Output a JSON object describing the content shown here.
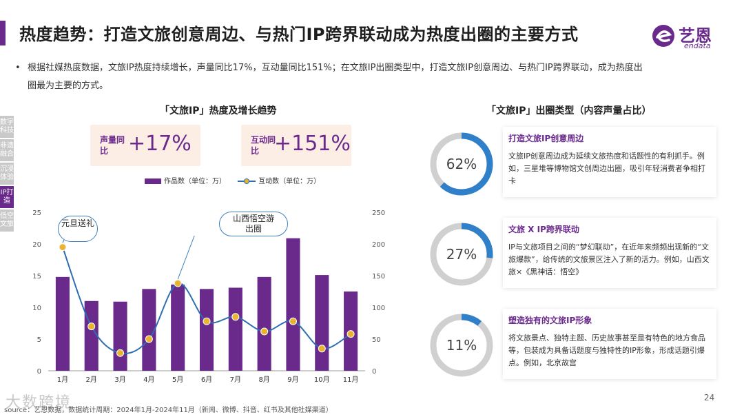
{
  "title": "热度趋势：打造文旅创意周边、与热门IP跨界联动成为热度出圈的主要方式",
  "logo": {
    "cn": "艺恩",
    "en": "endata"
  },
  "bullet": {
    "dot": "•",
    "text": "根据社媒热度数据，文旅IP热度持续增长，声量同比17%，互动量同比151%；在文旅IP出圈类型中，打造文旅IP创意周边、与热门IP跨界联动，成为热度出圈最为主要的方式。"
  },
  "side_tabs": [
    {
      "label": "数字科技",
      "active": false
    },
    {
      "label": "非遗融合",
      "active": false
    },
    {
      "label": "沉浸体验",
      "active": false
    },
    {
      "label": "IP打造",
      "active": true
    },
    {
      "label": "低空文旅",
      "active": false
    }
  ],
  "left_chart_title": "「文旅IP」热度及增长趋势",
  "stats": [
    {
      "label": "声量同比",
      "value": "+17%"
    },
    {
      "label": "互动同比",
      "value": "+151%"
    }
  ],
  "legend": {
    "bar": "作品数（单位：万）",
    "line": "互动数（单位：万）"
  },
  "callouts": {
    "jan": "元旦送礼",
    "may": "山西悟空游出圈"
  },
  "chart_data": {
    "type": "bar",
    "categories": [
      "1月",
      "2月",
      "3月",
      "4月",
      "5月",
      "6月",
      "7月",
      "8月",
      "9月",
      "10月",
      "11月"
    ],
    "series": [
      {
        "name": "作品数（单位：万）",
        "type": "bar",
        "axis": "left",
        "values": [
          14.8,
          11.0,
          10.9,
          12.9,
          13.6,
          12.9,
          13.1,
          14.8,
          20.9,
          15.1,
          12.5
        ]
      },
      {
        "name": "互动数（单位：万）",
        "type": "line",
        "axis": "right",
        "values": [
          195,
          70,
          28,
          50,
          138,
          78,
          85,
          62,
          78,
          35,
          58
        ]
      }
    ],
    "ylim_left": [
      0,
      25
    ],
    "yticks_left": [
      0,
      5,
      10,
      15,
      20,
      25
    ],
    "ylim_right": [
      0,
      250
    ],
    "yticks_right": [
      0,
      50,
      100,
      150,
      200,
      250
    ],
    "colors": {
      "bar": "#6a2a8c",
      "line": "#2f6db3",
      "marker": "#e8b431"
    }
  },
  "right_title": "「文旅IP」出圈类型（内容声量占比）",
  "types": [
    {
      "percent": "62%",
      "value": 0.62,
      "head": "打造文旅IP创意周边",
      "body": "文旅IP创意周边成为延续文旅热度和话题性的有利抓手。例如，三星堆等博物馆文创周边出圈，吸引年轻消费者争相打卡"
    },
    {
      "percent": "27%",
      "value": 0.27,
      "head": "文旅 X IP跨界联动",
      "body": "IP与文旅项目之间的“梦幻联动”，在近年来频频出现新的“文旅爆款”，给传统的文旅景区注入了新的活力。例如，山西文旅×《黑神话：悟空》"
    },
    {
      "percent": "11%",
      "value": 0.11,
      "head": "塑造独有的文旅IP形象",
      "body": "将文旅景点、独特主题、历史故事甚至是有特色的地方食品等，包装成为具备话题度与独特性的IP形象，形成话题引爆点。例如，北京故宫"
    }
  ],
  "colors": {
    "accent": "#6a2a8c",
    "ring": "#2f80c8",
    "ring_bg": "#d0d0d0"
  },
  "source": "source：艺恩数据，数据统计周期：2024年1月-2024年11月（新闻、微博、抖音、红书及其他社媒渠道）",
  "watermark": "大数跨境",
  "page_number": "24"
}
